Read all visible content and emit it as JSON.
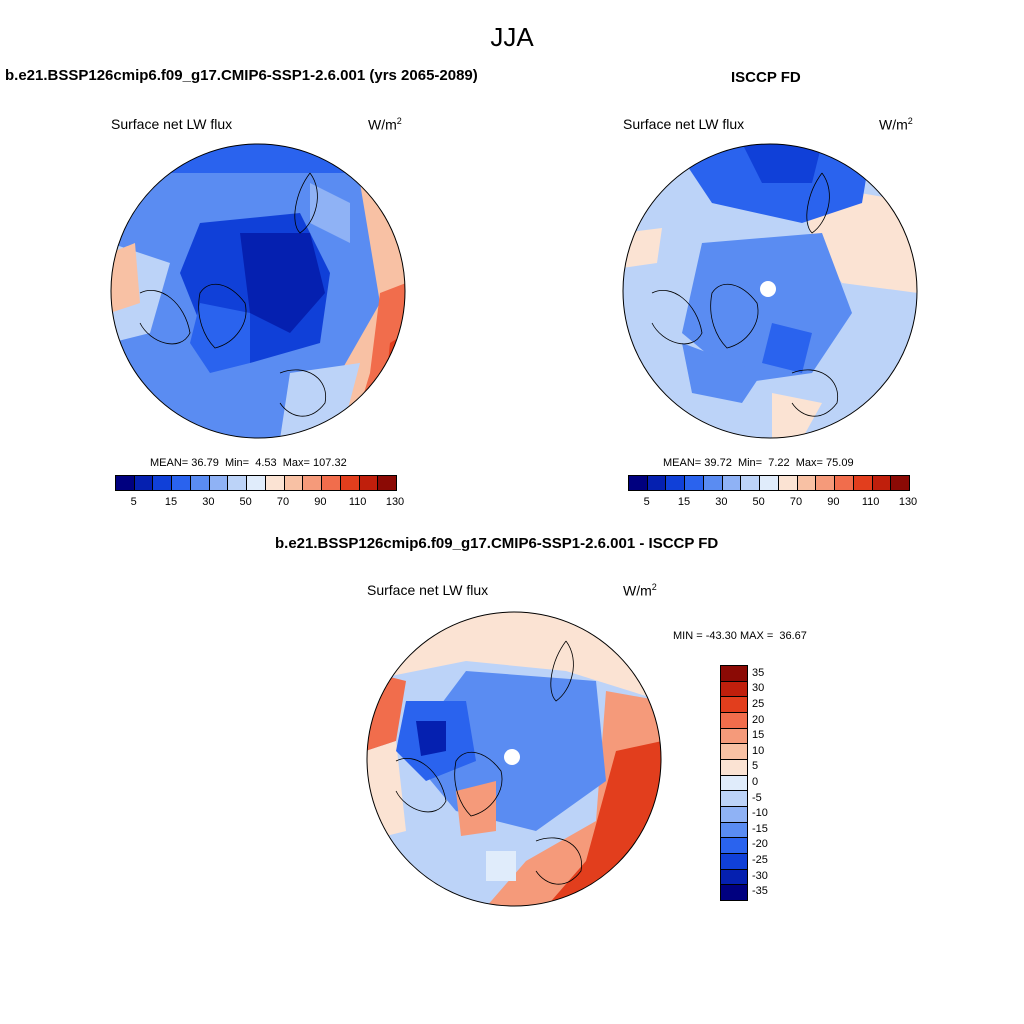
{
  "season": "JJA",
  "colors": {
    "diverging": [
      "#00007f",
      "#0520b0",
      "#1040d8",
      "#2a63ee",
      "#5a8cf2",
      "#8fb2f5",
      "#bcd3f8",
      "#e0ecfb",
      "#fbe3d3",
      "#f8c1a4",
      "#f59a7a",
      "#f16d4c",
      "#e23e1d",
      "#c01f0c",
      "#8b0a05"
    ],
    "diff": [
      "#00007f",
      "#0520b0",
      "#1040d8",
      "#2a63ee",
      "#5a8cf2",
      "#8fb2f5",
      "#bcd3f8",
      "#e0ecfb",
      "#fbe3d3",
      "#f8c1a4",
      "#f59a7a",
      "#f16d4c",
      "#e23e1d",
      "#c01f0c",
      "#8b0a05"
    ]
  },
  "panels": {
    "model": {
      "title": "b.e21.BSSP126cmip6.f09_g17.CMIP6-SSP1-2.6.001 (yrs 2065-2089)",
      "variable": "Surface net LW flux",
      "unit": "W/m",
      "unit_exp": "2",
      "mean_label": "MEAN=",
      "mean": "36.79",
      "min_label": "Min=",
      "min": "4.53",
      "max_label": "Max=",
      "max": "107.32",
      "ticks": [
        "5",
        "15",
        "30",
        "50",
        "70",
        "90",
        "110",
        "130"
      ]
    },
    "obs": {
      "title": "ISCCP FD",
      "variable": "Surface net LW flux",
      "unit": "W/m",
      "unit_exp": "2",
      "mean_label": "MEAN=",
      "mean": "39.72",
      "min_label": "Min=",
      "min": "7.22",
      "max_label": "Max=",
      "max": "75.09",
      "ticks": [
        "5",
        "15",
        "30",
        "50",
        "70",
        "90",
        "110",
        "130"
      ]
    },
    "diff": {
      "title": "b.e21.BSSP126cmip6.f09_g17.CMIP6-SSP1-2.6.001 - ISCCP FD",
      "variable": "Surface net LW flux",
      "unit": "W/m",
      "unit_exp": "2",
      "minmax_label": "MIN = -43.30 MAX =  36.67",
      "ticks": [
        "35",
        "30",
        "25",
        "20",
        "15",
        "10",
        "5",
        "0",
        "-5",
        "-10",
        "-15",
        "-20",
        "-25",
        "-30",
        "-35"
      ]
    }
  }
}
